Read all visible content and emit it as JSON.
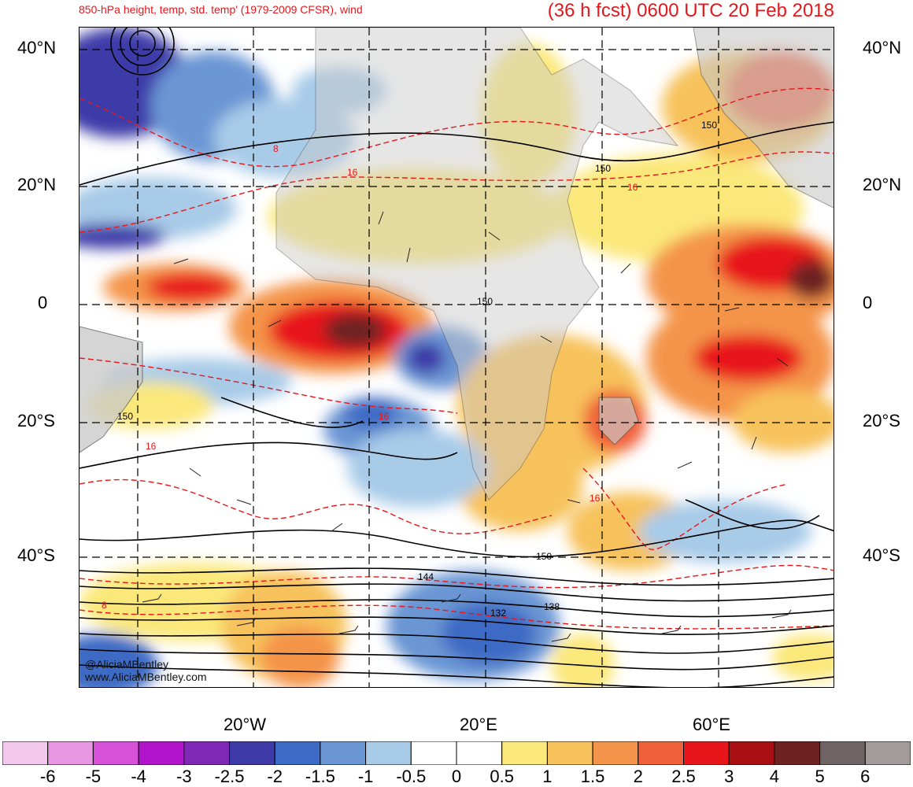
{
  "title": {
    "left": "850-hPa height, temp, std. temp' (1979-2009 CFSR), wind",
    "right": "(36 h fcst) 0600 UTC 20 Feb 2018"
  },
  "lat_labels": [
    "40°N",
    "20°N",
    "0",
    "20°S",
    "40°S"
  ],
  "lon_labels": [
    "20°W",
    "20°E",
    "60°E"
  ],
  "colorbar": {
    "labels": [
      "-6",
      "-5",
      "-4",
      "-3",
      "-2.5",
      "-2",
      "-1.5",
      "-1",
      "-0.5",
      "0",
      "0.5",
      "1",
      "1.5",
      "2",
      "2.5",
      "3",
      "4",
      "5",
      "6"
    ],
    "colors": [
      "#f2c8ee",
      "#e898e2",
      "#d750d8",
      "#b214cc",
      "#7f28b8",
      "#3e3aa8",
      "#3d6ac4",
      "#6a96d4",
      "#a8cbe8",
      "#ffffff",
      "#ffffff",
      "#fbe87a",
      "#f7c25c",
      "#f4944a",
      "#f0603a",
      "#e8161b",
      "#a80e12",
      "#6e2222",
      "#6f6464",
      "#a39a9a"
    ]
  },
  "contour_labels": {
    "height": [
      "150",
      "150",
      "150",
      "150",
      "150",
      "144",
      "138",
      "132"
    ],
    "temp": [
      "8",
      "16",
      "16",
      "16",
      "16",
      "16",
      "8"
    ]
  },
  "credit": {
    "handle": "@AliciaMBentley",
    "url": "www.AliciaMBentley.com"
  },
  "colors": {
    "title": "#e8161b",
    "land": "#c8c8c8",
    "height_contour": "#000000",
    "temp_contour": "#e8161b"
  }
}
